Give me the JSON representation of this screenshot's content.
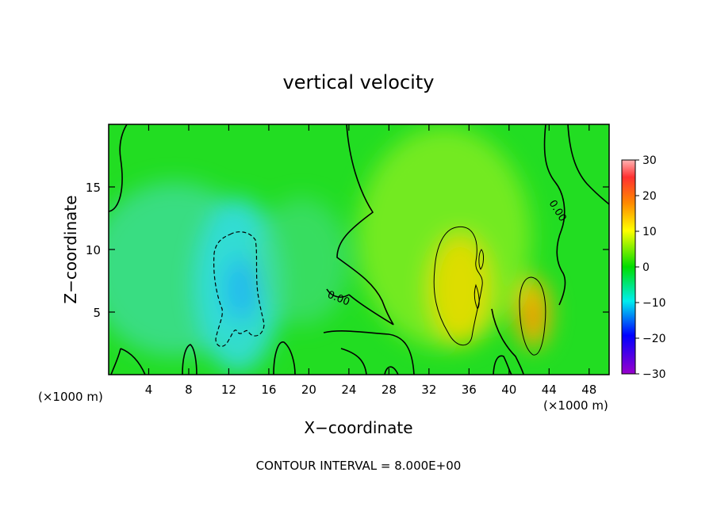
{
  "chart_data": {
    "type": "heatmap",
    "title": "vertical velocity",
    "xlabel": "X−coordinate",
    "ylabel": "Z−coordinate",
    "x_unit_left": "(×1000 m)",
    "x_unit_right": "(×1000 m)",
    "xlim": [
      0,
      50
    ],
    "ylim": [
      0,
      20
    ],
    "x_ticks": [
      4,
      8,
      12,
      16,
      20,
      24,
      28,
      32,
      36,
      40,
      44,
      48
    ],
    "y_ticks": [
      5,
      10,
      15
    ],
    "colorbar": {
      "range": [
        -30,
        30
      ],
      "ticks": [
        30,
        20,
        10,
        0,
        -10,
        -20,
        -30
      ],
      "tick_labels": [
        "30",
        "20",
        "10",
        "0",
        "−10",
        "−20",
        "−30"
      ]
    },
    "contour_labels": [
      "0.00",
      "0.00"
    ],
    "annotation": "CONTOUR INTERVAL = 8.000E+00",
    "contour_interval": 8.0,
    "features": [
      {
        "kind": "downdraft",
        "x": 13.5,
        "z": 7,
        "value": -9
      },
      {
        "kind": "updraft",
        "x": 35,
        "z": 7.5,
        "value": 11
      },
      {
        "kind": "updraft",
        "x": 42.5,
        "z": 5,
        "value": 14
      }
    ]
  }
}
